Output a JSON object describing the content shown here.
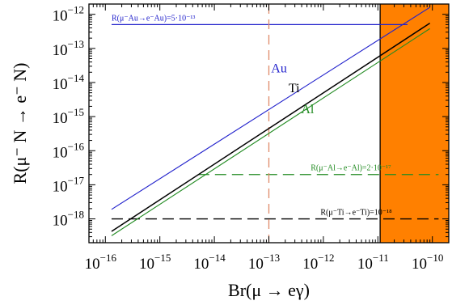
{
  "chart_data": {
    "type": "line",
    "xlabel": "Br(μ → eγ)",
    "ylabel": "R(μ⁻ N → e⁻ N)",
    "x_scale": "log",
    "y_scale": "log",
    "xlim": [
      5e-17,
      2e-10
    ],
    "ylim": [
      2e-19,
      2e-12
    ],
    "x_ticks": [
      1e-16,
      1e-15,
      1e-14,
      1e-13,
      1e-12,
      1e-11,
      1e-10
    ],
    "x_tick_labels": [
      {
        "base": "10",
        "exp": "−16"
      },
      {
        "base": "10",
        "exp": "−15"
      },
      {
        "base": "10",
        "exp": "−14"
      },
      {
        "base": "10",
        "exp": "−13"
      },
      {
        "base": "10",
        "exp": "−12"
      },
      {
        "base": "10",
        "exp": "−11"
      },
      {
        "base": "10",
        "exp": "−10"
      }
    ],
    "y_ticks": [
      1e-18,
      1e-17,
      1e-16,
      1e-15,
      1e-14,
      1e-13,
      1e-12
    ],
    "y_tick_labels": [
      {
        "base": "10",
        "exp": "−18"
      },
      {
        "base": "10",
        "exp": "−17"
      },
      {
        "base": "10",
        "exp": "−16"
      },
      {
        "base": "10",
        "exp": "−15"
      },
      {
        "base": "10",
        "exp": "−14"
      },
      {
        "base": "10",
        "exp": "−13"
      },
      {
        "base": "10",
        "exp": "−12"
      }
    ],
    "grid": false,
    "series": [
      {
        "name": "Au",
        "color": "#2222cc",
        "x": [
          1.3e-16,
          9e-11
        ],
        "y": [
          1.9e-18,
          1.6e-12
        ]
      },
      {
        "name": "Ti",
        "color": "#000000",
        "x": [
          1.3e-16,
          9e-11
        ],
        "y": [
          4.3e-19,
          5.5e-13
        ]
      },
      {
        "name": "Al",
        "color": "#228b22",
        "x": [
          1.3e-16,
          9e-11
        ],
        "y": [
          3.2e-19,
          3.8e-13
        ]
      }
    ],
    "limit_lines": [
      {
        "label": "R(μ⁻Au→e⁻Au)=5·10⁻¹³",
        "y": 5e-13,
        "x_from": 1.3e-16,
        "x_to": 3.5e-11,
        "color": "#2222cc",
        "style": "solid"
      },
      {
        "label": "R(μ⁻Al→e⁻Al)=2·10⁻¹⁷",
        "y": 2e-17,
        "x_from": 5e-15,
        "x_to": 1.3e-10,
        "color": "#228b22",
        "style": "dashed"
      },
      {
        "label": "R(μ⁻Ti→e⁻Ti)=10⁻¹⁸",
        "y": 1e-18,
        "x_from": 1.3e-16,
        "x_to": 1.3e-10,
        "color": "#000000",
        "style": "dashed"
      }
    ],
    "vertical_line": {
      "x": 1e-13,
      "color": "#e08a6a",
      "style": "dashed"
    },
    "excluded_region": {
      "x_from": 1.1e-11,
      "color": "#ff8000"
    }
  }
}
